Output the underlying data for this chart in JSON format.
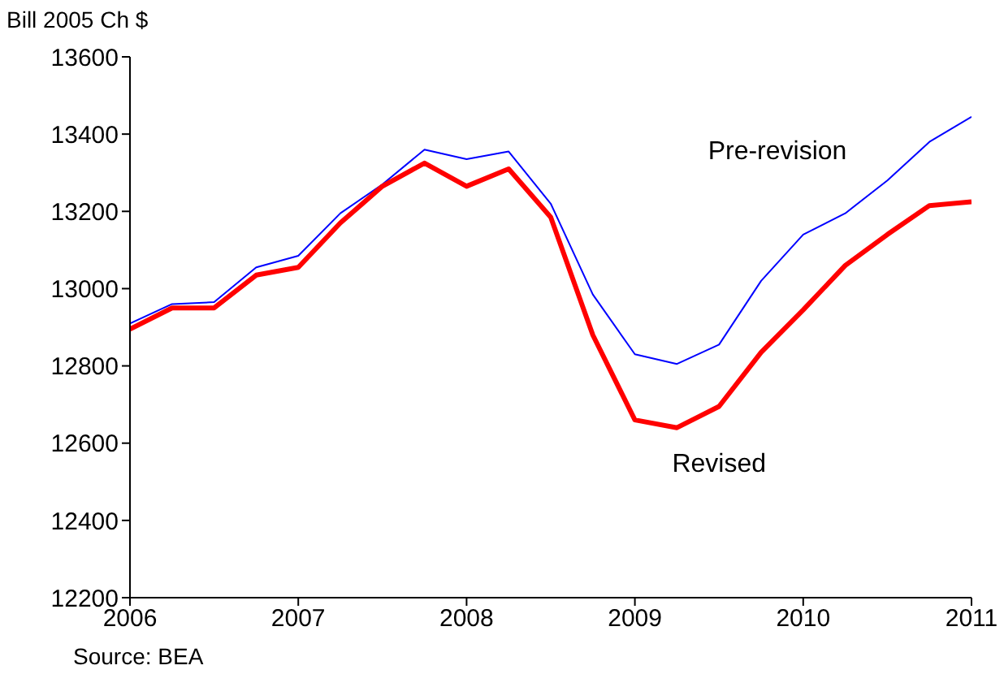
{
  "chart_data": {
    "type": "line",
    "ylabel": "Bill 2005 Ch $",
    "annotations": [
      "Source: BEA"
    ],
    "x": [
      2006,
      2006.25,
      2006.5,
      2006.75,
      2007,
      2007.25,
      2007.5,
      2007.75,
      2008,
      2008.25,
      2008.5,
      2008.75,
      2009,
      2009.25,
      2009.5,
      2009.75,
      2010,
      2010.25,
      2010.5,
      2010.75,
      2011
    ],
    "series": [
      {
        "name": "Pre-revision",
        "color": "#0000ff",
        "values": [
          12910,
          12960,
          12965,
          13055,
          13085,
          13195,
          13270,
          13360,
          13335,
          13355,
          13220,
          12985,
          12830,
          12805,
          12855,
          13020,
          13140,
          13195,
          13280,
          13380,
          13445
        ]
      },
      {
        "name": "Revised",
        "color": "#ff0000",
        "values": [
          12895,
          12950,
          12950,
          13035,
          13055,
          13170,
          13265,
          13325,
          13265,
          13310,
          13185,
          12880,
          12660,
          12640,
          12695,
          12835,
          12945,
          13060,
          13140,
          13215,
          13225
        ]
      }
    ],
    "xlim": [
      2006,
      2011
    ],
    "xticks": [
      2006,
      2007,
      2008,
      2009,
      2010,
      2011
    ],
    "ylim": [
      12200,
      13600
    ],
    "yticks": [
      12200,
      12400,
      12600,
      12800,
      13000,
      13200,
      13400,
      13600
    ],
    "grid": false,
    "legend": false,
    "marker": "none",
    "line_style": "solid"
  }
}
